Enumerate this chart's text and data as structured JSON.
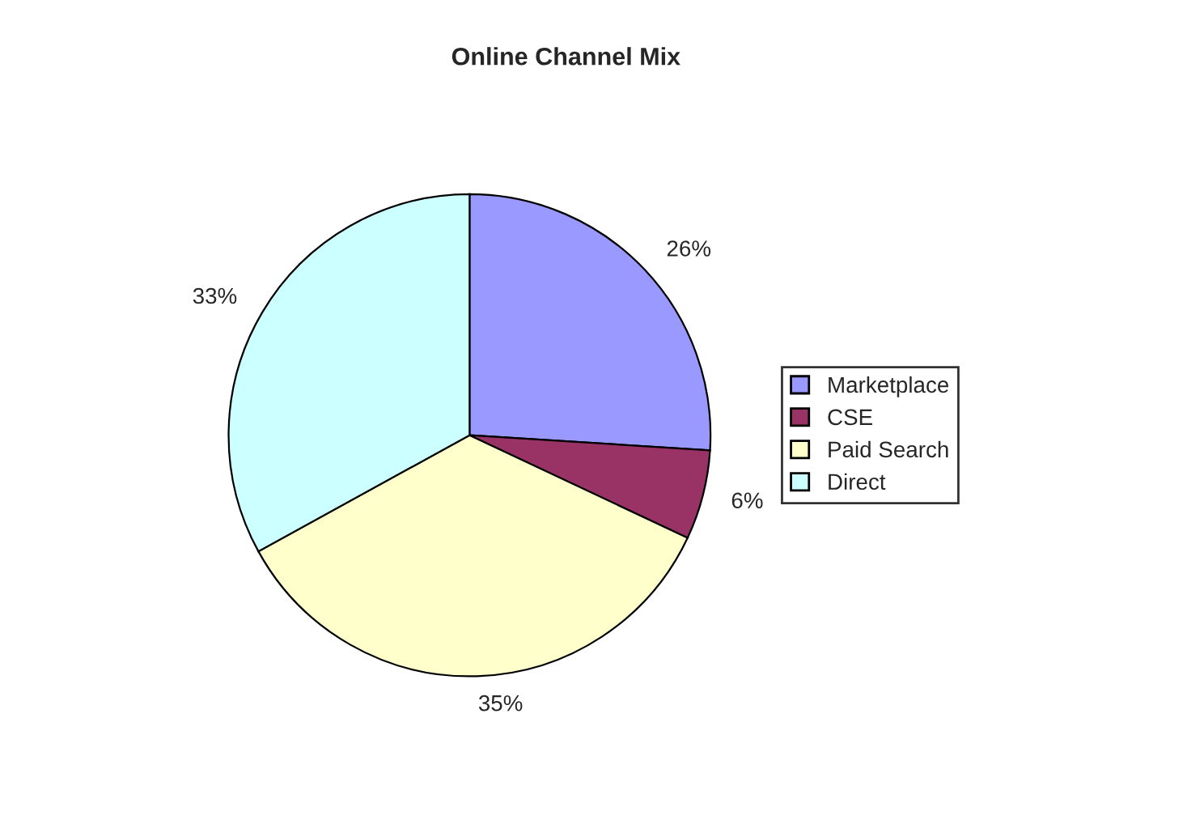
{
  "chart_data": {
    "type": "pie",
    "title": "Online Channel Mix",
    "categories": [
      "Marketplace",
      "CSE",
      "Paid Search",
      "Direct"
    ],
    "values": [
      26,
      6,
      35,
      33
    ],
    "colors": [
      "#9999ff",
      "#993366",
      "#ffffcc",
      "#ccffff"
    ],
    "value_labels": [
      "26%",
      "6%",
      "35%",
      "33%"
    ],
    "legend": "right"
  }
}
